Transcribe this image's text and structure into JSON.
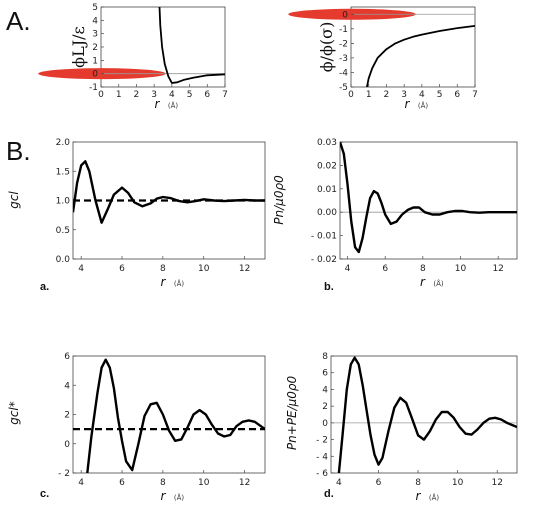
{
  "sections": {
    "a": "A.",
    "b": "B."
  },
  "chart_data": [
    {
      "id": "A1",
      "type": "line",
      "xlabel": "r",
      "xunit": "(Å)",
      "ylabel": "ϕLJ/ε",
      "xlim": [
        0,
        7
      ],
      "ylim": [
        -1,
        5
      ],
      "xticks": [
        0,
        1,
        2,
        3,
        4,
        5,
        6,
        7
      ],
      "yticks": [
        -1,
        0,
        1,
        2,
        3,
        4,
        5
      ],
      "series": [
        {
          "x": [
            3.3,
            3.35,
            3.45,
            3.6,
            3.8,
            4.0,
            4.3,
            4.7,
            5.2,
            6.0,
            7.0
          ],
          "y": [
            5,
            3.6,
            2.0,
            0.7,
            -0.2,
            -0.7,
            -0.65,
            -0.45,
            -0.3,
            -0.12,
            -0.05
          ]
        }
      ],
      "hline": 0
    },
    {
      "id": "A2",
      "type": "line",
      "xlabel": "r",
      "xunit": "(Å)",
      "ylabel": "ϕ/ϕ(σ)",
      "xlim": [
        0,
        7
      ],
      "ylim": [
        -5,
        0.5
      ],
      "xticks": [
        0,
        1,
        2,
        3,
        4,
        5,
        6,
        7
      ],
      "yticks": [
        0,
        -1,
        -2,
        -3,
        -4,
        -5
      ],
      "series": [
        {
          "x": [
            0.9,
            1.0,
            1.2,
            1.5,
            2.0,
            2.5,
            3.0,
            3.5,
            4.0,
            5.0,
            6.0,
            7.0
          ],
          "y": [
            -5,
            -4.4,
            -3.7,
            -3.0,
            -2.4,
            -2.0,
            -1.75,
            -1.55,
            -1.4,
            -1.15,
            -0.95,
            -0.8
          ]
        }
      ],
      "hline": 0
    },
    {
      "id": "a",
      "panel": "a.",
      "type": "line",
      "xlabel": "r",
      "xunit": "(Å)",
      "ylabel": "gcl",
      "xlim": [
        3.6,
        13
      ],
      "ylim": [
        0,
        2
      ],
      "xticks": [
        4,
        6,
        8,
        10,
        12
      ],
      "yticks": [
        0.0,
        0.5,
        1.0,
        1.5,
        2.0
      ],
      "yticklabels": [
        "0.0",
        "0.5",
        "1.0",
        "1.5",
        "2.0"
      ],
      "series": [
        {
          "x": [
            3.6,
            3.8,
            4.0,
            4.2,
            4.4,
            4.7,
            5.0,
            5.3,
            5.6,
            6.0,
            6.3,
            6.6,
            7.0,
            7.4,
            7.7,
            8.0,
            8.4,
            8.8,
            9.2,
            9.6,
            10.0,
            10.5,
            11.0,
            11.5,
            12.0,
            12.5,
            13.0
          ],
          "y": [
            0.8,
            1.3,
            1.6,
            1.67,
            1.5,
            1.0,
            0.62,
            0.85,
            1.1,
            1.22,
            1.13,
            0.97,
            0.9,
            0.95,
            1.03,
            1.06,
            1.04,
            0.99,
            0.97,
            0.99,
            1.02,
            1.0,
            0.99,
            1.0,
            1.01,
            1.0,
            1.0
          ]
        }
      ],
      "hline": 1.0
    },
    {
      "id": "b",
      "panel": "b.",
      "type": "line",
      "xlabel": "r",
      "xunit": "(Å)",
      "ylabel": "Pn/μ0ρ0",
      "xlim": [
        3.6,
        13
      ],
      "ylim": [
        -0.02,
        0.03
      ],
      "xticks": [
        4,
        6,
        8,
        10,
        12
      ],
      "yticks": [
        -0.02,
        -0.01,
        0.0,
        0.01,
        0.02,
        0.03
      ],
      "yticklabels": [
        "- 0.02",
        "- 0.01",
        "0.00",
        "0.01",
        "0.02",
        "0.03"
      ],
      "series": [
        {
          "x": [
            3.6,
            3.8,
            4.0,
            4.2,
            4.4,
            4.6,
            4.8,
            5.0,
            5.2,
            5.4,
            5.6,
            5.8,
            6.0,
            6.3,
            6.6,
            6.9,
            7.2,
            7.5,
            7.8,
            8.1,
            8.5,
            8.9,
            9.3,
            9.7,
            10.1,
            10.5,
            11.0,
            11.5,
            12.0,
            12.5,
            13.0
          ],
          "y": [
            0.03,
            0.025,
            0.012,
            -0.004,
            -0.015,
            -0.017,
            -0.011,
            -0.002,
            0.006,
            0.009,
            0.008,
            0.004,
            -0.001,
            -0.005,
            -0.004,
            -0.001,
            0.001,
            0.002,
            0.002,
            0.0,
            -0.001,
            -0.001,
            0.0,
            0.0005,
            0.0005,
            0.0,
            -0.0002,
            0.0,
            0.0,
            0.0,
            0.0
          ]
        }
      ],
      "hline": 0
    },
    {
      "id": "c",
      "panel": "c.",
      "type": "line",
      "xlabel": "r",
      "xunit": "(Å)",
      "ylabel": "gcl*",
      "xlim": [
        3.6,
        13
      ],
      "ylim": [
        -2,
        6
      ],
      "xticks": [
        4,
        6,
        8,
        10,
        12
      ],
      "yticks": [
        -2,
        0,
        2,
        4,
        6
      ],
      "yticklabels": [
        "- 2",
        "0",
        "2",
        "4",
        "6"
      ],
      "series": [
        {
          "x": [
            4.3,
            4.5,
            4.8,
            5.0,
            5.2,
            5.4,
            5.6,
            5.8,
            6.0,
            6.2,
            6.5,
            6.8,
            7.1,
            7.4,
            7.7,
            8.0,
            8.3,
            8.6,
            8.9,
            9.2,
            9.5,
            9.8,
            10.1,
            10.4,
            10.7,
            11.0,
            11.3,
            11.6,
            11.9,
            12.2,
            12.5,
            12.8,
            13.0
          ],
          "y": [
            -2,
            0.5,
            3.5,
            5.2,
            5.75,
            5.2,
            3.8,
            1.8,
            0.2,
            -1.2,
            -1.8,
            0.0,
            1.9,
            2.7,
            2.8,
            2.0,
            0.9,
            0.2,
            0.3,
            1.1,
            2.0,
            2.3,
            2.0,
            1.3,
            0.7,
            0.5,
            0.6,
            1.2,
            1.5,
            1.6,
            1.5,
            1.2,
            1.0
          ]
        }
      ],
      "hline": 1.0
    },
    {
      "id": "d",
      "panel": "d.",
      "type": "line",
      "xlabel": "r",
      "xunit": "(Å)",
      "ylabel": "Pn+PE/μ0ρ0",
      "xlim": [
        3.6,
        13
      ],
      "ylim": [
        -6,
        8
      ],
      "xticks": [
        4,
        6,
        8,
        10,
        12
      ],
      "yticks": [
        -6,
        -4,
        -2,
        0,
        2,
        4,
        6,
        8
      ],
      "yticklabels": [
        "- 6",
        "- 4",
        "- 2",
        "0",
        "2",
        "4",
        "6",
        "8"
      ],
      "series": [
        {
          "x": [
            4.0,
            4.2,
            4.4,
            4.6,
            4.8,
            5.0,
            5.2,
            5.4,
            5.6,
            5.8,
            6.0,
            6.2,
            6.5,
            6.8,
            7.1,
            7.4,
            7.7,
            8.0,
            8.3,
            8.6,
            8.9,
            9.2,
            9.5,
            9.8,
            10.1,
            10.4,
            10.7,
            11.0,
            11.3,
            11.6,
            11.9,
            12.2,
            12.5,
            12.8,
            13.0
          ],
          "y": [
            -6,
            -1.0,
            4.0,
            7.0,
            7.8,
            7.0,
            4.5,
            1.5,
            -1.5,
            -3.8,
            -5.0,
            -4.2,
            -1.0,
            1.8,
            3.0,
            2.4,
            0.5,
            -1.5,
            -2.0,
            -1.0,
            0.4,
            1.3,
            1.3,
            0.6,
            -0.5,
            -1.3,
            -1.4,
            -0.8,
            0.0,
            0.5,
            0.6,
            0.4,
            0.0,
            -0.3,
            -0.5
          ]
        }
      ],
      "hline": 0
    }
  ]
}
